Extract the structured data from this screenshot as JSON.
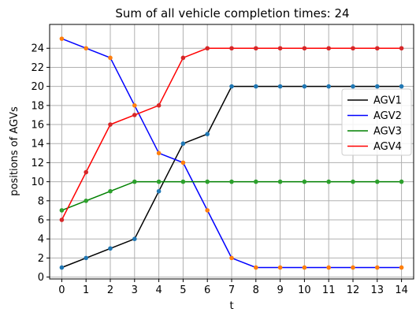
{
  "chart_data": {
    "type": "line",
    "title": "Sum of all vehicle completion times: 24",
    "xlabel": "t",
    "ylabel": "positions of AGVs",
    "xlim": [
      -0.5,
      14.5
    ],
    "ylim": [
      -0.2,
      26.5
    ],
    "xticks": [
      0,
      1,
      2,
      3,
      4,
      5,
      6,
      7,
      8,
      9,
      10,
      11,
      12,
      13,
      14
    ],
    "yticks": [
      0,
      2,
      4,
      6,
      8,
      10,
      12,
      14,
      16,
      18,
      20,
      22,
      24
    ],
    "grid": true,
    "legend": "right",
    "x": [
      0,
      1,
      2,
      3,
      4,
      5,
      6,
      7,
      8,
      9,
      10,
      11,
      12,
      13,
      14
    ],
    "series": [
      {
        "name": "AGV1",
        "color": "#000000",
        "marker_color": "#1f77b4",
        "values": [
          1,
          2,
          3,
          4,
          9,
          14,
          15,
          20,
          20,
          20,
          20,
          20,
          20,
          20,
          20
        ]
      },
      {
        "name": "AGV2",
        "color": "#0000ff",
        "marker_color": "#ff7f0e",
        "values": [
          25,
          24,
          23,
          18,
          13,
          12,
          7,
          2,
          1,
          1,
          1,
          1,
          1,
          1,
          1
        ]
      },
      {
        "name": "AGV3",
        "color": "#008000",
        "marker_color": "#2ca02c",
        "values": [
          7,
          8,
          9,
          10,
          10,
          10,
          10,
          10,
          10,
          10,
          10,
          10,
          10,
          10,
          10
        ]
      },
      {
        "name": "AGV4",
        "color": "#ff0000",
        "marker_color": "#d62728",
        "values": [
          6,
          11,
          16,
          17,
          18,
          23,
          24,
          24,
          24,
          24,
          24,
          24,
          24,
          24,
          24
        ]
      }
    ]
  }
}
